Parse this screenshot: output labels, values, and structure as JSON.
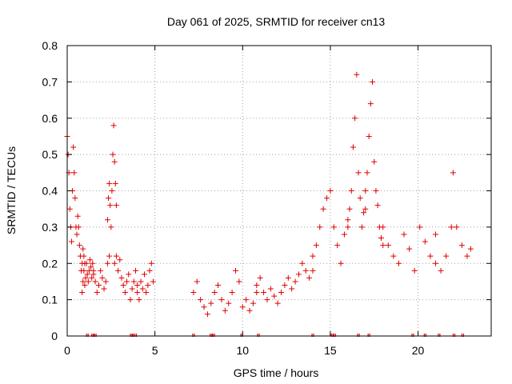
{
  "chart_data": {
    "type": "scatter",
    "title": "Day 061 of 2025, SRMTID for receiver cn13",
    "xlabel": "GPS time / hours",
    "ylabel": "SRMTID / TECUs",
    "xlim": [
      0,
      24.17
    ],
    "ylim": [
      0,
      0.8
    ],
    "xticks": [
      0,
      5,
      10,
      15,
      20
    ],
    "xtick_labels": [
      "0",
      "5",
      "10",
      "15",
      "20"
    ],
    "yticks": [
      0,
      0.1,
      0.2,
      0.3,
      0.4,
      0.5,
      0.6,
      0.7,
      0.8
    ],
    "ytick_labels": [
      "0",
      "0.1",
      "0.2",
      "0.3",
      "0.4",
      "0.5",
      "0.6",
      "0.7",
      "0.8"
    ],
    "grid": true,
    "marker": "plus",
    "color": "#e00000",
    "series": [
      {
        "name": "SRMTID",
        "segments": [
          {
            "x": [
              0.0,
              0.05,
              0.1,
              0.15,
              0.2,
              0.25,
              0.3,
              0.35,
              0.4,
              0.45,
              0.5,
              0.55,
              0.6,
              0.65,
              0.7,
              0.75,
              0.8,
              0.85,
              0.9,
              0.95,
              1.0
            ],
            "y": [
              0.55,
              0.5,
              0.45,
              0.35,
              0.3,
              0.26,
              0.4,
              0.52,
              0.45,
              0.38,
              0.3,
              0.28,
              0.33,
              0.3,
              0.25,
              0.22,
              0.18,
              0.2,
              0.24,
              0.22,
              0.2
            ]
          },
          {
            "x": [
              0.85,
              0.9,
              0.95,
              1.0,
              1.05,
              1.1,
              1.15,
              1.2,
              1.25,
              1.3,
              1.35,
              1.4,
              1.45,
              1.5
            ],
            "y": [
              0.12,
              0.15,
              0.18,
              0.14,
              0.16,
              0.2,
              0.17,
              0.15,
              0.18,
              0.21,
              0.19,
              0.16,
              0.2,
              0.18
            ]
          },
          {
            "x": [
              1.5,
              1.6,
              1.7,
              1.8,
              1.9,
              2.0,
              2.1,
              2.2,
              2.3,
              2.4
            ],
            "y": [
              0.17,
              0.15,
              0.12,
              0.14,
              0.18,
              0.16,
              0.13,
              0.15,
              0.2,
              0.22
            ]
          },
          {
            "x": [
              2.3,
              2.35,
              2.4,
              2.45,
              2.5,
              2.55,
              2.6,
              2.65,
              2.7,
              2.75,
              2.8
            ],
            "y": [
              0.32,
              0.38,
              0.42,
              0.36,
              0.3,
              0.4,
              0.5,
              0.58,
              0.48,
              0.42,
              0.36
            ]
          },
          {
            "x": [
              2.7,
              2.8,
              2.9,
              3.0,
              3.1,
              3.2,
              3.3,
              3.4,
              3.5,
              3.6,
              3.7,
              3.8,
              3.9,
              4.0
            ],
            "y": [
              0.2,
              0.22,
              0.18,
              0.21,
              0.16,
              0.14,
              0.12,
              0.15,
              0.17,
              0.1,
              0.13,
              0.15,
              0.18,
              0.14
            ]
          },
          {
            "x": [
              4.0,
              4.1,
              4.2,
              4.3,
              4.4,
              4.5,
              4.6,
              4.7,
              4.8,
              4.9
            ],
            "y": [
              0.12,
              0.1,
              0.15,
              0.13,
              0.17,
              0.12,
              0.14,
              0.18,
              0.2,
              0.15
            ]
          },
          {
            "x": [
              7.2,
              7.4,
              7.6,
              7.8,
              8.0,
              8.2,
              8.4,
              8.6,
              8.8,
              9.0,
              9.2,
              9.4,
              9.6,
              9.8,
              10.0,
              10.2,
              10.4,
              10.6,
              10.8
            ],
            "y": [
              0.12,
              0.15,
              0.1,
              0.08,
              0.06,
              0.09,
              0.12,
              0.14,
              0.1,
              0.07,
              0.09,
              0.12,
              0.18,
              0.15,
              0.08,
              0.1,
              0.07,
              0.09,
              0.12
            ]
          },
          {
            "x": [
              10.8,
              11.0,
              11.2,
              11.4,
              11.6,
              11.8,
              12.0,
              12.2,
              12.4,
              12.6,
              12.8,
              13.0,
              13.2,
              13.4,
              13.6,
              13.8,
              14.0
            ],
            "y": [
              0.14,
              0.16,
              0.12,
              0.1,
              0.13,
              0.11,
              0.09,
              0.12,
              0.14,
              0.16,
              0.13,
              0.15,
              0.17,
              0.2,
              0.18,
              0.16,
              0.22
            ]
          },
          {
            "x": [
              14.0,
              14.2,
              14.4,
              14.6,
              14.8,
              15.0,
              15.2,
              15.4,
              15.6,
              15.8,
              16.0
            ],
            "y": [
              0.18,
              0.25,
              0.3,
              0.35,
              0.38,
              0.4,
              0.3,
              0.25,
              0.2,
              0.28,
              0.32
            ]
          },
          {
            "x": [
              16.0,
              16.1,
              16.2,
              16.3,
              16.4,
              16.5,
              16.6,
              16.7,
              16.8,
              16.9,
              17.0
            ],
            "y": [
              0.3,
              0.35,
              0.4,
              0.52,
              0.6,
              0.72,
              0.45,
              0.38,
              0.3,
              0.34,
              0.4
            ]
          },
          {
            "x": [
              17.0,
              17.1,
              17.2,
              17.3,
              17.4,
              17.5,
              17.6,
              17.7,
              17.8,
              17.9,
              18.0
            ],
            "y": [
              0.35,
              0.45,
              0.55,
              0.64,
              0.7,
              0.48,
              0.4,
              0.36,
              0.3,
              0.27,
              0.25
            ]
          },
          {
            "x": [
              18.0,
              18.3,
              18.6,
              18.9,
              19.2,
              19.5,
              19.8,
              20.1,
              20.4,
              20.7,
              21.0
            ],
            "y": [
              0.3,
              0.25,
              0.22,
              0.2,
              0.28,
              0.24,
              0.18,
              0.3,
              0.26,
              0.22,
              0.28
            ]
          },
          {
            "x": [
              21.0,
              21.3,
              21.6,
              21.9,
              22.0,
              22.2,
              22.5,
              22.8,
              23.0
            ],
            "y": [
              0.2,
              0.18,
              0.22,
              0.3,
              0.45,
              0.3,
              0.25,
              0.22,
              0.24
            ]
          }
        ]
      }
    ],
    "zero_markers_x": [
      1.15,
      1.45,
      1.6,
      3.65,
      3.8,
      3.9,
      7.2,
      8.2,
      8.35,
      9.95,
      10.9,
      14.0,
      15.1,
      15.25,
      16.6,
      17.2,
      19.7,
      20.4,
      21.2,
      22.05,
      22.55
    ]
  }
}
